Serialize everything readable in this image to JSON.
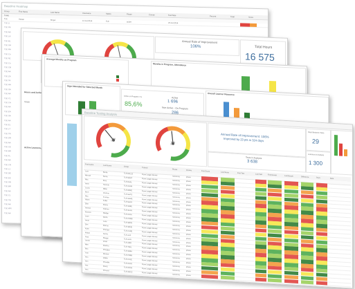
{
  "sheet1": {
    "title": "Baseline Heatmap",
    "columns": [
      "Group",
      "First Name",
      "Last Name",
      "Username",
      "Status",
      "Phase",
      "Course",
      "Test Date",
      "Percent",
      "Total",
      "Score"
    ],
    "row0": [
      "Totals",
      "",
      "",
      "",
      "",
      "",
      "",
      "",
      "",
      "",
      ""
    ],
    "first_row": [
      "TLE",
      "Hanae",
      "Moyer",
      "12-Jul-2014",
      "TLE",
      "active",
      "",
      "23-Jul-2014",
      "",
      "",
      ""
    ],
    "side_rows": [
      "TLE Li",
      "TLE PA",
      "TLE AA",
      "TLE LA",
      "TLE BL",
      "TLE SH",
      "TLE RA",
      "TLE Co",
      "TLE N1",
      "TLE Co",
      "TLE CB",
      "TLE AA",
      "TLE ZA",
      "TLE TA",
      "TLE HA",
      "TLE SA",
      "TLE AA",
      "TLE Y1",
      "TLE CA",
      "TLE AA",
      "TLE EA",
      "TLE SA",
      "TLE AA",
      "TLE EL",
      "TLE LT",
      "TLE TR",
      "TLE DN",
      "TLE AA",
      "TLE CE",
      "TLE BR",
      "TLE FL",
      "TLE AA",
      "TLE CN",
      "TLE L1",
      "TLE DE",
      "TLE EE",
      "TLE SN",
      "TLE BR",
      "TLE AA",
      "TLE CL",
      "TLE TB",
      "TLE AA",
      "TLE WN",
      "TLE AA"
    ]
  },
  "sheet2": {
    "rate_title": "Annual Rate of Improvement",
    "rate_value": "106%",
    "hours_title": "Total Hours",
    "hours_value": "16 575",
    "months_title": "Average Months on Program",
    "legend_a": "Actual Months",
    "legend_b": "Expected Months",
    "attendance_title": "Months in Program, Attendance",
    "distrib_title": "Distributed",
    "distrib_items": [
      "0",
      "1",
      "2"
    ],
    "hours_active": "Hours and Active",
    "totals_label": "Totals",
    "active_learners": "Active Learners, B",
    "logged_hours": "Logged Hours per M"
  },
  "sheet3": {
    "signs_title": "Sign Attended for Selected Month",
    "pct_label": "Active on Program / %",
    "pct_value": "85,6%",
    "active_label": "Active",
    "active_value": "1 696",
    "nonactive_label": "Non Active - On Program",
    "nonactive_value": "286",
    "overall_title": "Overall Learner Resource"
  },
  "sheet5": {
    "title": "Baseline Testing Analysis",
    "gauge1_pct": "38%",
    "gauge2_pct": "50%",
    "gauge_label": "Total",
    "rate_line1": "Annual Rate of Improvement: 106%",
    "rate_line2": "Improved by 23 pts in 324 days",
    "days_title": "Days Between Tests",
    "days_value": "29",
    "tests_title": "Tests in Analysis",
    "tests_value": "3 638",
    "learners_title": "Learners in Analysis",
    "learners_value": "1 300",
    "columns": [
      "First Name",
      "Last Name",
      "Group",
      "Tutorial",
      "Phase",
      "Course",
      "First Score",
      "Last Score",
      "First Test",
      "Last Test",
      "First Result",
      "Last Result",
      "Difference",
      "Days",
      "Rate"
    ],
    "totals": [
      "",
      "",
      "",
      "",
      "",
      "",
      "",
      "",
      "",
      "",
      "",
      "",
      "",
      "",
      ""
    ],
    "rows": [
      [
        "Lars",
        "Burke",
        "TLE BALLS",
        "Perm Leggin Round",
        "numeracy",
        "phase"
      ],
      [
        "Minnah",
        "Barne",
        "TLE MOAT",
        "Perm Leggin Round",
        "numeracy",
        "phase"
      ],
      [
        "Rita",
        "Bray",
        "TLE BAAL",
        "Perm Leggin Round",
        "numeracy",
        "phase"
      ],
      [
        "Amin",
        "Hannah",
        "TLE LEAM",
        "Perm Leggin Round",
        "numeracy",
        "phase"
      ],
      [
        "Lucas",
        "Miller",
        "TLE BERE",
        "Perm Leggin Round",
        "numeracy",
        "phase"
      ],
      [
        "Borri",
        "Chohan",
        "TLE MATS",
        "Perm Leggin Round",
        "numeracy",
        "phase"
      ],
      [
        "Ritu",
        "Frames",
        "TLE SAME",
        "Perm Leggin Round",
        "numeracy",
        "phase"
      ],
      [
        "Nilam",
        "Fuller",
        "TLE MAAY",
        "Perm Leggin Round",
        "numeracy",
        "phase"
      ],
      [
        "Shin",
        "Mama",
        "TLE SABE",
        "Perm Leggin Round",
        "numeracy",
        "phase"
      ],
      [
        "Ammal",
        "Pelman",
        "TLE SLAN",
        "Perm Leggin Round",
        "numeracy",
        "phase"
      ],
      [
        "Keanan",
        "Sledge",
        "TLE LEAA",
        "Perm Leggin Round",
        "numeracy",
        "phase"
      ],
      [
        "Leon",
        "Smith",
        "TLE CNRB",
        "Perm Leggin Round",
        "numeracy",
        "phase"
      ],
      [
        "Amal",
        "Lane",
        "TLE SEPR",
        "Perm Leggin Round",
        "numeracy",
        "phase"
      ],
      [
        "Sim",
        "Murray",
        "TLE SENE",
        "Perm Leggin Round",
        "numeracy",
        "phase"
      ],
      [
        "Kalei",
        "Plamper",
        "TLE CANE",
        "Perm Leggin Round",
        "numeracy",
        "phase"
      ],
      [
        "Mabel",
        "Sanka",
        "TLE ALIF",
        "Perm Leggin Round",
        "numeracy",
        "phase"
      ],
      [
        "Pete",
        "Bloggs",
        "TLE ALIN",
        "Perm Leggin Round",
        "numeracy",
        "phase"
      ],
      [
        "Jonah",
        "Ghali",
        "TLE ASIR",
        "Perm Leggin Round",
        "numeracy",
        "phase"
      ],
      [
        "Mim",
        "Marsha",
        "TLE TBAL",
        "Perm Leggin Round",
        "numeracy",
        "phase"
      ],
      [
        "Bea",
        "Pfangles",
        "TLE SABA",
        "Perm Leggin Round",
        "numeracy",
        "phase"
      ],
      [
        "Ivan",
        "Shatow",
        "TLE PREB",
        "Perm Leggin Round",
        "numeracy",
        "phase"
      ],
      [
        "Ana",
        "Wallin",
        "TLE CALE",
        "Perm Leggin Round",
        "numeracy",
        "phase"
      ],
      [
        "Ann",
        "Phoeble",
        "TLE LEAN",
        "Perm Leggin Round",
        "numeracy",
        "phase"
      ],
      [
        "Asa",
        "Muniz",
        "TLE DENA",
        "Perm Leggin Round",
        "numeracy",
        "phase"
      ],
      [
        "Ana",
        "Pluverd",
        "TLE WALS",
        "Perm Leggin Round",
        "numeracy",
        "phase"
      ]
    ]
  },
  "colors": {
    "red": "#e0443f",
    "orange": "#f39a3b",
    "yellow": "#f5e547",
    "green": "#4dab4c",
    "darkgreen": "#2f7d34",
    "blue": "#4a8fd0",
    "navy": "#3f6f9e"
  }
}
